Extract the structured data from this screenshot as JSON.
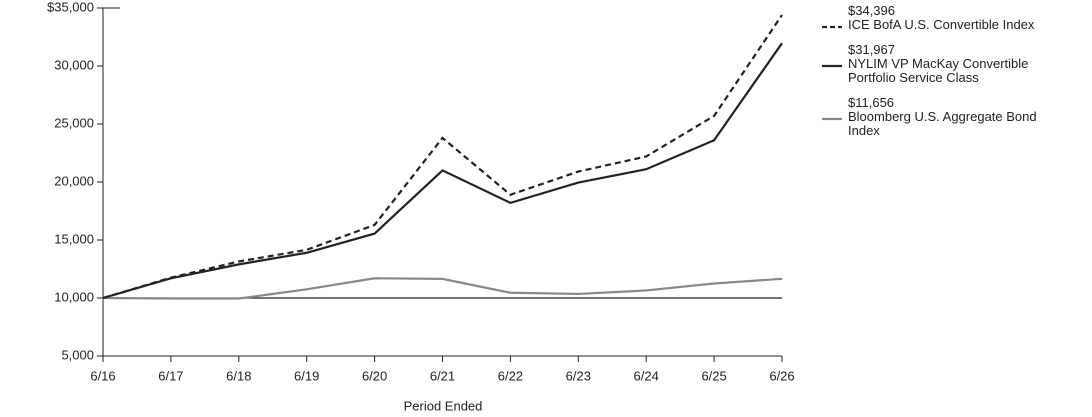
{
  "chart_data": {
    "type": "line",
    "x_label": "Period Ended",
    "categories": [
      "6/16",
      "6/17",
      "6/18",
      "6/19",
      "6/20",
      "6/21",
      "6/22",
      "6/23",
      "6/24",
      "6/25",
      "6/26"
    ],
    "series": [
      {
        "name": "ICE BofA U.S. Convertible Index",
        "color": "#222222",
        "style": "dashed",
        "values": [
          10000,
          11750,
          13150,
          14150,
          16300,
          23800,
          18900,
          20900,
          22200,
          25700,
          34396
        ],
        "value_labels": [
          null,
          null,
          null,
          null,
          null,
          null,
          null,
          null,
          null,
          null,
          "$34,396"
        ]
      },
      {
        "name": "NYLIM VP MacKay Convertible Portfolio Service Class",
        "color": "#222222",
        "style": "solid",
        "values": [
          10000,
          11700,
          12900,
          13900,
          15550,
          21000,
          18200,
          19950,
          21100,
          23600,
          31967
        ],
        "value_labels": [
          null,
          null,
          null,
          null,
          null,
          null,
          null,
          null,
          null,
          null,
          "$31,967"
        ]
      },
      {
        "name": "Bloomberg U.S. Aggregate Bond Index",
        "color": "#888888",
        "style": "solid",
        "values": [
          10000,
          9950,
          9950,
          10750,
          11700,
          11650,
          10450,
          10350,
          10650,
          11250,
          11656
        ],
        "value_labels": [
          null,
          null,
          null,
          null,
          null,
          null,
          null,
          null,
          null,
          null,
          "$11,656"
        ]
      }
    ],
    "reference_line": 10000,
    "ylim": [
      5000,
      35000
    ],
    "yticks": [
      {
        "value": 5000,
        "label": "5,000"
      },
      {
        "value": 10000,
        "label": "10,000"
      },
      {
        "value": 15000,
        "label": "15,000"
      },
      {
        "value": 20000,
        "label": "20,000"
      },
      {
        "value": 25000,
        "label": "25,000"
      },
      {
        "value": 30000,
        "label": "30,000"
      },
      {
        "value": 35000,
        "label": "$35,000"
      }
    ],
    "legend": "right"
  }
}
